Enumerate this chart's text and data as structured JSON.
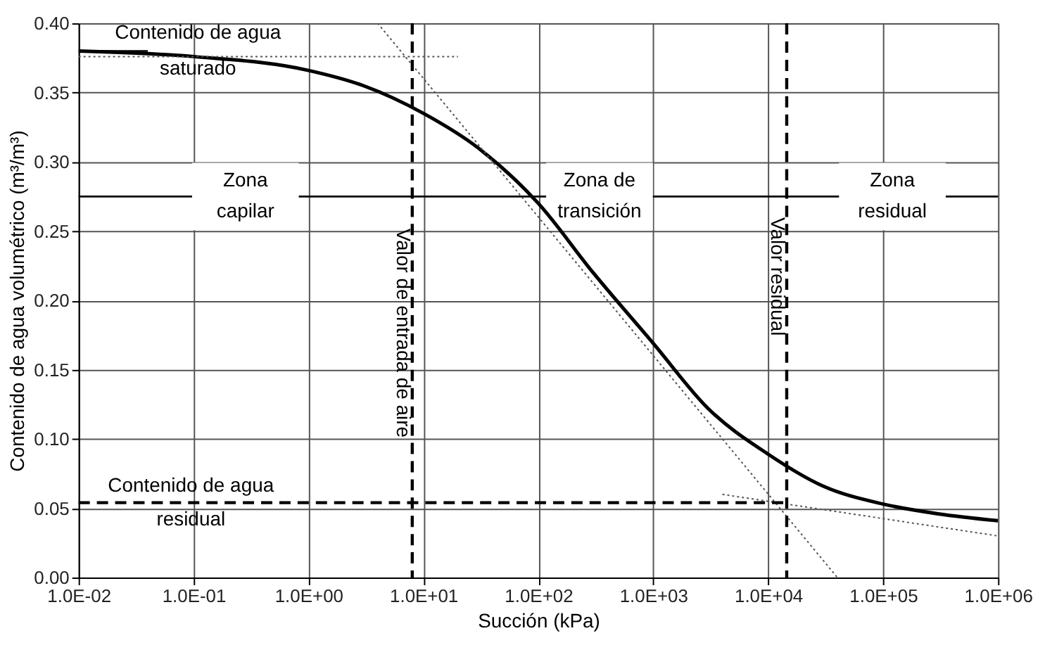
{
  "chart_data": {
    "type": "line",
    "xlabel": "Succión (kPa)",
    "ylabel": "Contenido de agua volumétrico (m³/m³)",
    "log": "x",
    "grid": true,
    "xlim": [
      0.01,
      1000000
    ],
    "ylim": [
      0,
      0.4
    ],
    "xticks": [
      {
        "value": 0.01,
        "label": "1.0E-02"
      },
      {
        "value": 0.1,
        "label": "1.0E-01"
      },
      {
        "value": 1,
        "label": "1.0E+00"
      },
      {
        "value": 10,
        "label": "1.0E+01"
      },
      {
        "value": 100,
        "label": "1.0E+02"
      },
      {
        "value": 1000,
        "label": "1.0E+03"
      },
      {
        "value": 10000,
        "label": "1.0E+04"
      },
      {
        "value": 100000,
        "label": "1.0E+05"
      },
      {
        "value": 1000000,
        "label": "1.0E+06"
      }
    ],
    "yticks": [
      {
        "value": 0,
        "label": "0.00"
      },
      {
        "value": 0.05,
        "label": "0.05"
      },
      {
        "value": 0.1,
        "label": "0.10"
      },
      {
        "value": 0.15,
        "label": "0.15"
      },
      {
        "value": 0.2,
        "label": "0.20"
      },
      {
        "value": 0.25,
        "label": "0.25"
      },
      {
        "value": 0.3,
        "label": "0.30"
      },
      {
        "value": 0.35,
        "label": "0.35"
      },
      {
        "value": 0.4,
        "label": "0.40"
      }
    ],
    "series": [
      {
        "color": "#000000",
        "line_style": "solid",
        "x": [
          0.01,
          0.1,
          1,
          3,
          10,
          30,
          100,
          300,
          1000,
          3000,
          10000,
          30000,
          100000,
          300000,
          1000000
        ],
        "values": [
          0.38,
          0.376,
          0.366,
          0.355,
          0.335,
          0.31,
          0.27,
          0.22,
          0.169,
          0.122,
          0.089,
          0.066,
          0.053,
          0.046,
          0.041
        ]
      },
      {
        "color": "#555555",
        "line_style": "dotted",
        "x": [
          0.01,
          20
        ],
        "values": [
          0.376,
          0.376
        ]
      },
      {
        "color": "#555555",
        "line_style": "dotted",
        "x": [
          4,
          40000
        ],
        "values": [
          0.4,
          0
        ]
      },
      {
        "color": "#555555",
        "line_style": "dotted",
        "x": [
          4000,
          1000000
        ],
        "values": [
          0.06,
          0.03
        ]
      }
    ],
    "ref_lines": [
      {
        "axis": "x",
        "value": 8,
        "label": "Valor de entrada de aire",
        "color": "#000000",
        "line_style": "dashed"
      },
      {
        "axis": "x",
        "value": 14500,
        "label": "Valor residual",
        "color": "#000000",
        "line_style": "dashed"
      },
      {
        "axis": "y",
        "value": 0.054,
        "label": "Contenido de agua residual",
        "color": "#000000",
        "line_style": "dashed"
      },
      {
        "axis": "y",
        "value": 0.275,
        "color": "#000000",
        "line_style": "solid"
      }
    ],
    "annotations": [
      {
        "text": "Contenido de agua saturado",
        "x": 0.01,
        "y": 0.38
      },
      "Zona capilar",
      "Zona de transición",
      "Zona residual"
    ]
  }
}
